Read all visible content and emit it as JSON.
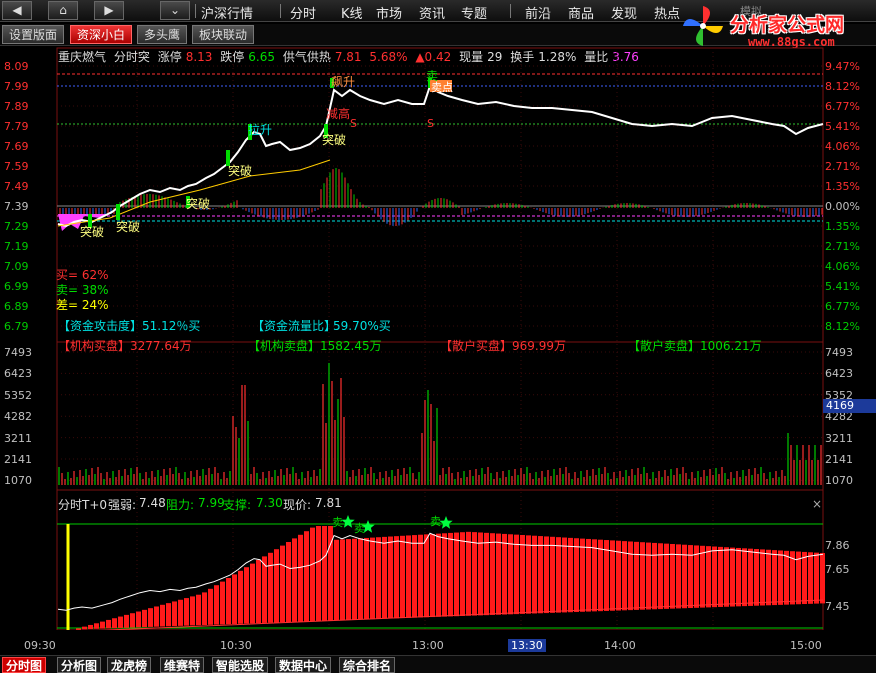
{
  "menu": {
    "nav_buttons": [
      "◀",
      "⌂",
      "▶"
    ],
    "collapse_glyph": "⌄",
    "market_label": "沪深行情",
    "items": [
      "分时",
      "K线",
      "市场",
      "资讯",
      "专题",
      "前沿",
      "商品",
      "发现",
      "热点"
    ],
    "extra": "模拟"
  },
  "logo": {
    "brand": "分析家公式网",
    "url": "www.88gs.com"
  },
  "tabs": [
    {
      "label": "设置版面",
      "active": false
    },
    {
      "label": "资深小白",
      "active": true
    },
    {
      "label": "多头鹰",
      "active": false
    },
    {
      "label": "板块联动",
      "active": false
    }
  ],
  "info": {
    "stock_name": "重庆燃气",
    "mode": "分时突",
    "limit_up_label": "涨停",
    "limit_up": "8.13",
    "limit_down_label": "跌停",
    "limit_down": "6.65",
    "supply_label": "供气供热",
    "supply_price": "7.81",
    "change_pct": "5.68%",
    "change_amt": "▲0.42",
    "volume_label": "现量",
    "volume": "29",
    "turnover_label": "换手",
    "turnover": "1.28%",
    "ratio_label": "量比",
    "ratio": "3.76"
  },
  "price_axis": {
    "left": [
      "8.09",
      "7.99",
      "7.89",
      "7.79",
      "7.69",
      "7.59",
      "7.49",
      "7.39",
      "7.29",
      "7.19",
      "7.09",
      "6.99",
      "6.89",
      "6.79"
    ],
    "right": [
      "9.47%",
      "8.12%",
      "6.77%",
      "5.41%",
      "4.06%",
      "2.71%",
      "1.35%",
      "0.00%",
      "1.35%",
      "2.71%",
      "4.06%",
      "5.41%",
      "6.77%",
      "8.12%"
    ]
  },
  "annotations": {
    "breakout": "突破",
    "pull_up": "拉升",
    "surge": "飙升",
    "sell": "卖",
    "sell_point": "卖点",
    "take_profit": "减高",
    "buy_ratio": "买= 62%",
    "sell_ratio": "卖= 38%",
    "diff_ratio": "差= 24%",
    "marker_s": "S"
  },
  "funds": {
    "attack_label": "【资金攻击度】",
    "attack_value": "51.12％买",
    "flow_label": "【资金流量比】",
    "flow_value": "59.70%买",
    "inst_buy_label": "【机构买盘】",
    "inst_buy": "3277.64万",
    "inst_sell_label": "【机构卖盘】",
    "inst_sell": "1582.45万",
    "retail_buy_label": "【散户买盘】",
    "retail_buy": "969.99万",
    "retail_sell_label": "【散户卖盘】",
    "retail_sell": "1006.21万"
  },
  "volume_axis": {
    "left": [
      "7493",
      "6423",
      "5352",
      "4282",
      "3211",
      "2141",
      "1070"
    ],
    "right": [
      "7493",
      "6423",
      "5352",
      "4282",
      "3211",
      "2141",
      "1070"
    ],
    "current": "4169"
  },
  "t0": {
    "title": "分时T+0",
    "strength_label": "强弱:",
    "strength": "7.48",
    "resistance_label": "阻力:",
    "resistance": "7.99",
    "support_label": "支撑:",
    "support": "7.30",
    "price_label": "现价:",
    "price": "7.81",
    "close": "×",
    "axis": [
      "7.86",
      "7.65",
      "7.45"
    ]
  },
  "time_axis": [
    "09:30",
    "10:30",
    "13:00",
    "13:30",
    "14:00",
    "15:00"
  ],
  "bottom_tabs": [
    {
      "label": "分时图",
      "active": true
    },
    {
      "label": "分析图",
      "active": false
    },
    {
      "label": "龙虎榜",
      "active": false
    },
    {
      "label": "维赛特",
      "active": false
    },
    {
      "label": "智能选股",
      "active": false
    },
    {
      "label": "数据中心",
      "active": false
    },
    {
      "label": "综合排名",
      "active": false
    }
  ],
  "colors": {
    "up": "#ff3030",
    "down": "#00cc00",
    "line": "#ffffff",
    "cyan": "#00e0e0",
    "yellow": "#ffff00",
    "magenta": "#ff40ff"
  }
}
